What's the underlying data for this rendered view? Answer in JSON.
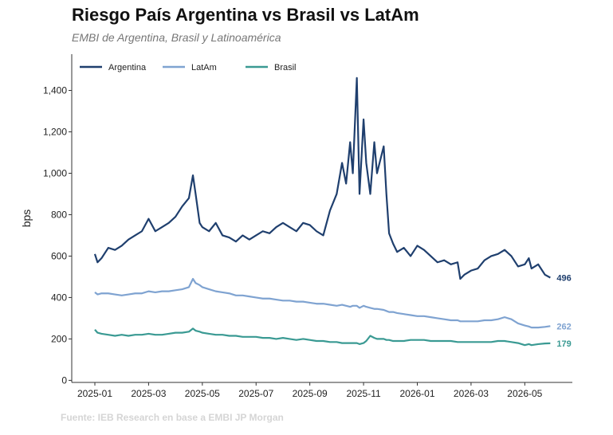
{
  "chart_data": {
    "type": "line",
    "title": "Riesgo País Argentina vs Brasil vs LatAm",
    "subtitle": "EMBI de Argentina, Brasil y Latinoamérica",
    "y_label": "bps",
    "source": "Fuente: IEB Research en base a EMBI JP Morgan",
    "legend": "upper left",
    "x": [
      0,
      0.1,
      0.25,
      0.5,
      0.75,
      1,
      1.25,
      1.5,
      1.75,
      2,
      2.25,
      2.5,
      2.75,
      3,
      3.25,
      3.5,
      3.65,
      3.75,
      3.9,
      4,
      4.25,
      4.5,
      4.75,
      5,
      5.25,
      5.5,
      5.75,
      6,
      6.25,
      6.5,
      6.75,
      7,
      7.25,
      7.5,
      7.75,
      8,
      8.25,
      8.5,
      8.75,
      9,
      9.2,
      9.35,
      9.5,
      9.6,
      9.75,
      9.85,
      10,
      10.1,
      10.25,
      10.4,
      10.5,
      10.75,
      10.85,
      10.95,
      11.1,
      11.25,
      11.5,
      11.75,
      12,
      12.25,
      12.5,
      12.75,
      13,
      13.25,
      13.5,
      13.6,
      13.75,
      14,
      14.25,
      14.5,
      14.75,
      15,
      15.25,
      15.5,
      15.75,
      16,
      16.15,
      16.25,
      16.5,
      16.75,
      16.95
    ],
    "series": [
      {
        "name": "Argentina",
        "color": "#1f3f6e",
        "values": [
          610,
          570,
          590,
          640,
          630,
          650,
          680,
          700,
          720,
          780,
          720,
          740,
          760,
          790,
          840,
          880,
          990,
          900,
          760,
          740,
          720,
          760,
          700,
          690,
          670,
          700,
          680,
          700,
          720,
          710,
          740,
          760,
          740,
          720,
          760,
          750,
          720,
          700,
          820,
          900,
          1050,
          950,
          1150,
          1000,
          1460,
          900,
          1260,
          1050,
          900,
          1150,
          1000,
          1130,
          900,
          710,
          660,
          620,
          640,
          600,
          650,
          630,
          600,
          570,
          580,
          560,
          570,
          490,
          510,
          530,
          540,
          580,
          600,
          610,
          630,
          600,
          550,
          560,
          590,
          540,
          560,
          510,
          496
        ]
      },
      {
        "name": "LatAm",
        "color": "#7fa3d1",
        "values": [
          425,
          415,
          420,
          420,
          415,
          410,
          415,
          420,
          420,
          430,
          425,
          430,
          430,
          435,
          440,
          450,
          490,
          470,
          460,
          450,
          440,
          430,
          425,
          420,
          410,
          410,
          405,
          400,
          395,
          395,
          390,
          385,
          385,
          380,
          380,
          375,
          370,
          370,
          365,
          360,
          365,
          360,
          355,
          360,
          360,
          350,
          360,
          355,
          350,
          345,
          345,
          340,
          335,
          330,
          330,
          325,
          320,
          315,
          310,
          310,
          305,
          300,
          295,
          290,
          290,
          285,
          285,
          285,
          285,
          290,
          290,
          295,
          305,
          295,
          275,
          265,
          260,
          255,
          255,
          258,
          262
        ]
      },
      {
        "name": "Brasil",
        "color": "#3a9a93",
        "values": [
          245,
          230,
          225,
          220,
          215,
          220,
          215,
          220,
          220,
          225,
          220,
          220,
          225,
          230,
          230,
          235,
          250,
          240,
          235,
          230,
          225,
          220,
          220,
          215,
          215,
          210,
          210,
          210,
          205,
          205,
          200,
          205,
          200,
          195,
          200,
          195,
          190,
          190,
          185,
          185,
          180,
          180,
          180,
          180,
          180,
          175,
          180,
          190,
          215,
          205,
          200,
          200,
          195,
          195,
          190,
          190,
          190,
          195,
          195,
          195,
          190,
          190,
          190,
          190,
          185,
          185,
          185,
          185,
          185,
          185,
          185,
          190,
          190,
          185,
          180,
          170,
          175,
          170,
          175,
          178,
          179
        ]
      }
    ],
    "xlim": [
      -0.86,
      17.77
    ],
    "xticks": [
      {
        "value": 0,
        "label": "2025-01"
      },
      {
        "value": 2,
        "label": "2025-03"
      },
      {
        "value": 4,
        "label": "2025-05"
      },
      {
        "value": 6,
        "label": "2025-07"
      },
      {
        "value": 8,
        "label": "2025-09"
      },
      {
        "value": 10,
        "label": "2025-11"
      },
      {
        "value": 12,
        "label": "2026-01"
      },
      {
        "value": 14,
        "label": "2026-03"
      },
      {
        "value": 16,
        "label": "2026-05"
      }
    ],
    "ylim": [
      -10,
      1575
    ],
    "yticks": [
      0,
      200,
      400,
      600,
      800,
      {
        "value": 1000,
        "label": "1,000"
      },
      {
        "value": 1200,
        "label": "1,200"
      },
      {
        "value": 1400,
        "label": "1,400"
      }
    ]
  }
}
